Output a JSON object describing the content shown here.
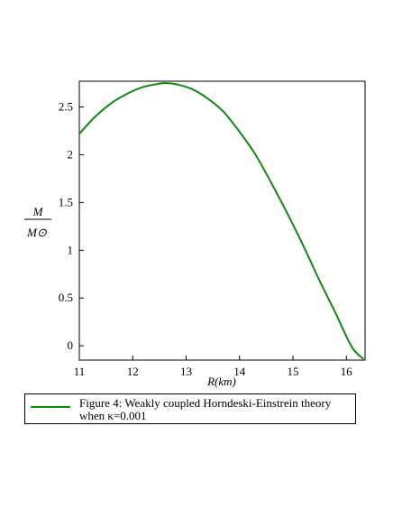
{
  "chart_data": {
    "type": "line",
    "title": "",
    "xlabel": "R(km)",
    "ylabel": {
      "numerator": "M",
      "denominator": "M⊙"
    },
    "xlim": [
      11.0,
      16.35
    ],
    "ylim": [
      -0.15,
      2.77
    ],
    "xticks": [
      "11",
      "12",
      "13",
      "14",
      "15",
      "16"
    ],
    "yticks": [
      "0",
      "0.5",
      "1",
      "1.5",
      "2",
      "2.5"
    ],
    "grid": false,
    "legend": "bottom",
    "series": [
      {
        "name": "Figure 4: Weakly coupled Horndeski-Einstrein theory when κ=0.001",
        "color": "#118811",
        "x": [
          11.0,
          11.3,
          11.6,
          11.9,
          12.2,
          12.5,
          12.6,
          12.8,
          13.1,
          13.4,
          13.7,
          14.0,
          14.3,
          14.6,
          14.9,
          15.2,
          15.5,
          15.8,
          16.1,
          16.32
        ],
        "y": [
          2.22,
          2.4,
          2.54,
          2.64,
          2.71,
          2.745,
          2.75,
          2.74,
          2.69,
          2.59,
          2.45,
          2.24,
          2.0,
          1.7,
          1.38,
          1.04,
          0.68,
          0.34,
          -0.01,
          -0.14
        ]
      }
    ]
  },
  "legend": {
    "text": "Figure 4: Weakly coupled Horndeski-Einstrein theory when κ=0.001"
  }
}
